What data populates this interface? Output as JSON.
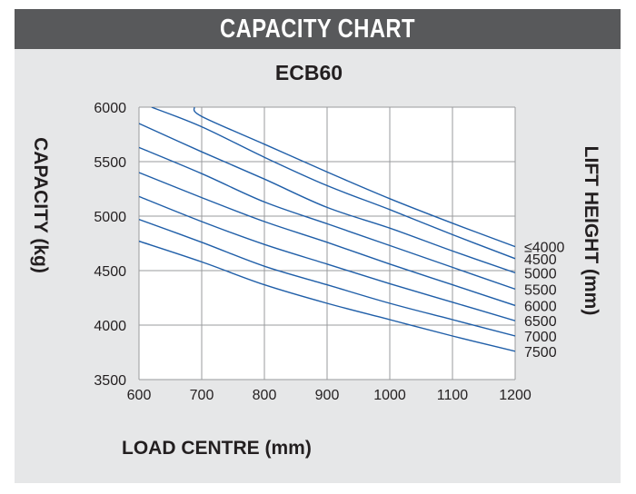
{
  "header": {
    "title": "CAPACITY CHART"
  },
  "chart_data": {
    "type": "line",
    "title": "ECB60",
    "xlabel": "LOAD CENTRE (mm)",
    "ylabel": "CAPACITY (kg)",
    "y2label": "LIFT HEIGHT (mm)",
    "xlim": [
      600,
      1200
    ],
    "ylim": [
      3500,
      6000
    ],
    "xticks": [
      600,
      700,
      800,
      900,
      1000,
      1100,
      1200
    ],
    "yticks": [
      3500,
      4000,
      4500,
      5000,
      5500,
      6000
    ],
    "grid": true,
    "line_color": "#1f5ea8",
    "series": [
      {
        "name": "≤4000",
        "points": [
          [
            688,
            6000
          ],
          [
            700,
            5915
          ],
          [
            800,
            5660
          ],
          [
            900,
            5405
          ],
          [
            1000,
            5160
          ],
          [
            1100,
            4935
          ],
          [
            1200,
            4720
          ]
        ]
      },
      {
        "name": "4500",
        "points": [
          [
            620,
            6000
          ],
          [
            700,
            5820
          ],
          [
            800,
            5540
          ],
          [
            900,
            5280
          ],
          [
            1000,
            5060
          ],
          [
            1100,
            4830
          ],
          [
            1200,
            4610
          ]
        ]
      },
      {
        "name": "5000",
        "points": [
          [
            600,
            5850
          ],
          [
            700,
            5590
          ],
          [
            800,
            5340
          ],
          [
            900,
            5080
          ],
          [
            1000,
            4890
          ],
          [
            1100,
            4680
          ],
          [
            1200,
            4480
          ]
        ]
      },
      {
        "name": "5500",
        "points": [
          [
            600,
            5630
          ],
          [
            700,
            5390
          ],
          [
            800,
            5130
          ],
          [
            900,
            4930
          ],
          [
            1000,
            4730
          ],
          [
            1100,
            4530
          ],
          [
            1200,
            4330
          ]
        ]
      },
      {
        "name": "6000",
        "points": [
          [
            600,
            5400
          ],
          [
            700,
            5170
          ],
          [
            800,
            4950
          ],
          [
            900,
            4760
          ],
          [
            1000,
            4560
          ],
          [
            1100,
            4370
          ],
          [
            1200,
            4180
          ]
        ]
      },
      {
        "name": "6500",
        "points": [
          [
            600,
            5180
          ],
          [
            700,
            4950
          ],
          [
            800,
            4740
          ],
          [
            900,
            4560
          ],
          [
            1000,
            4380
          ],
          [
            1100,
            4210
          ],
          [
            1200,
            4040
          ]
        ]
      },
      {
        "name": "7000",
        "points": [
          [
            600,
            4970
          ],
          [
            700,
            4760
          ],
          [
            800,
            4540
          ],
          [
            900,
            4370
          ],
          [
            1000,
            4200
          ],
          [
            1100,
            4050
          ],
          [
            1200,
            3900
          ]
        ]
      },
      {
        "name": "7500",
        "points": [
          [
            600,
            4770
          ],
          [
            700,
            4580
          ],
          [
            800,
            4370
          ],
          [
            900,
            4200
          ],
          [
            1000,
            4050
          ],
          [
            1100,
            3900
          ],
          [
            1200,
            3760
          ]
        ]
      }
    ]
  }
}
